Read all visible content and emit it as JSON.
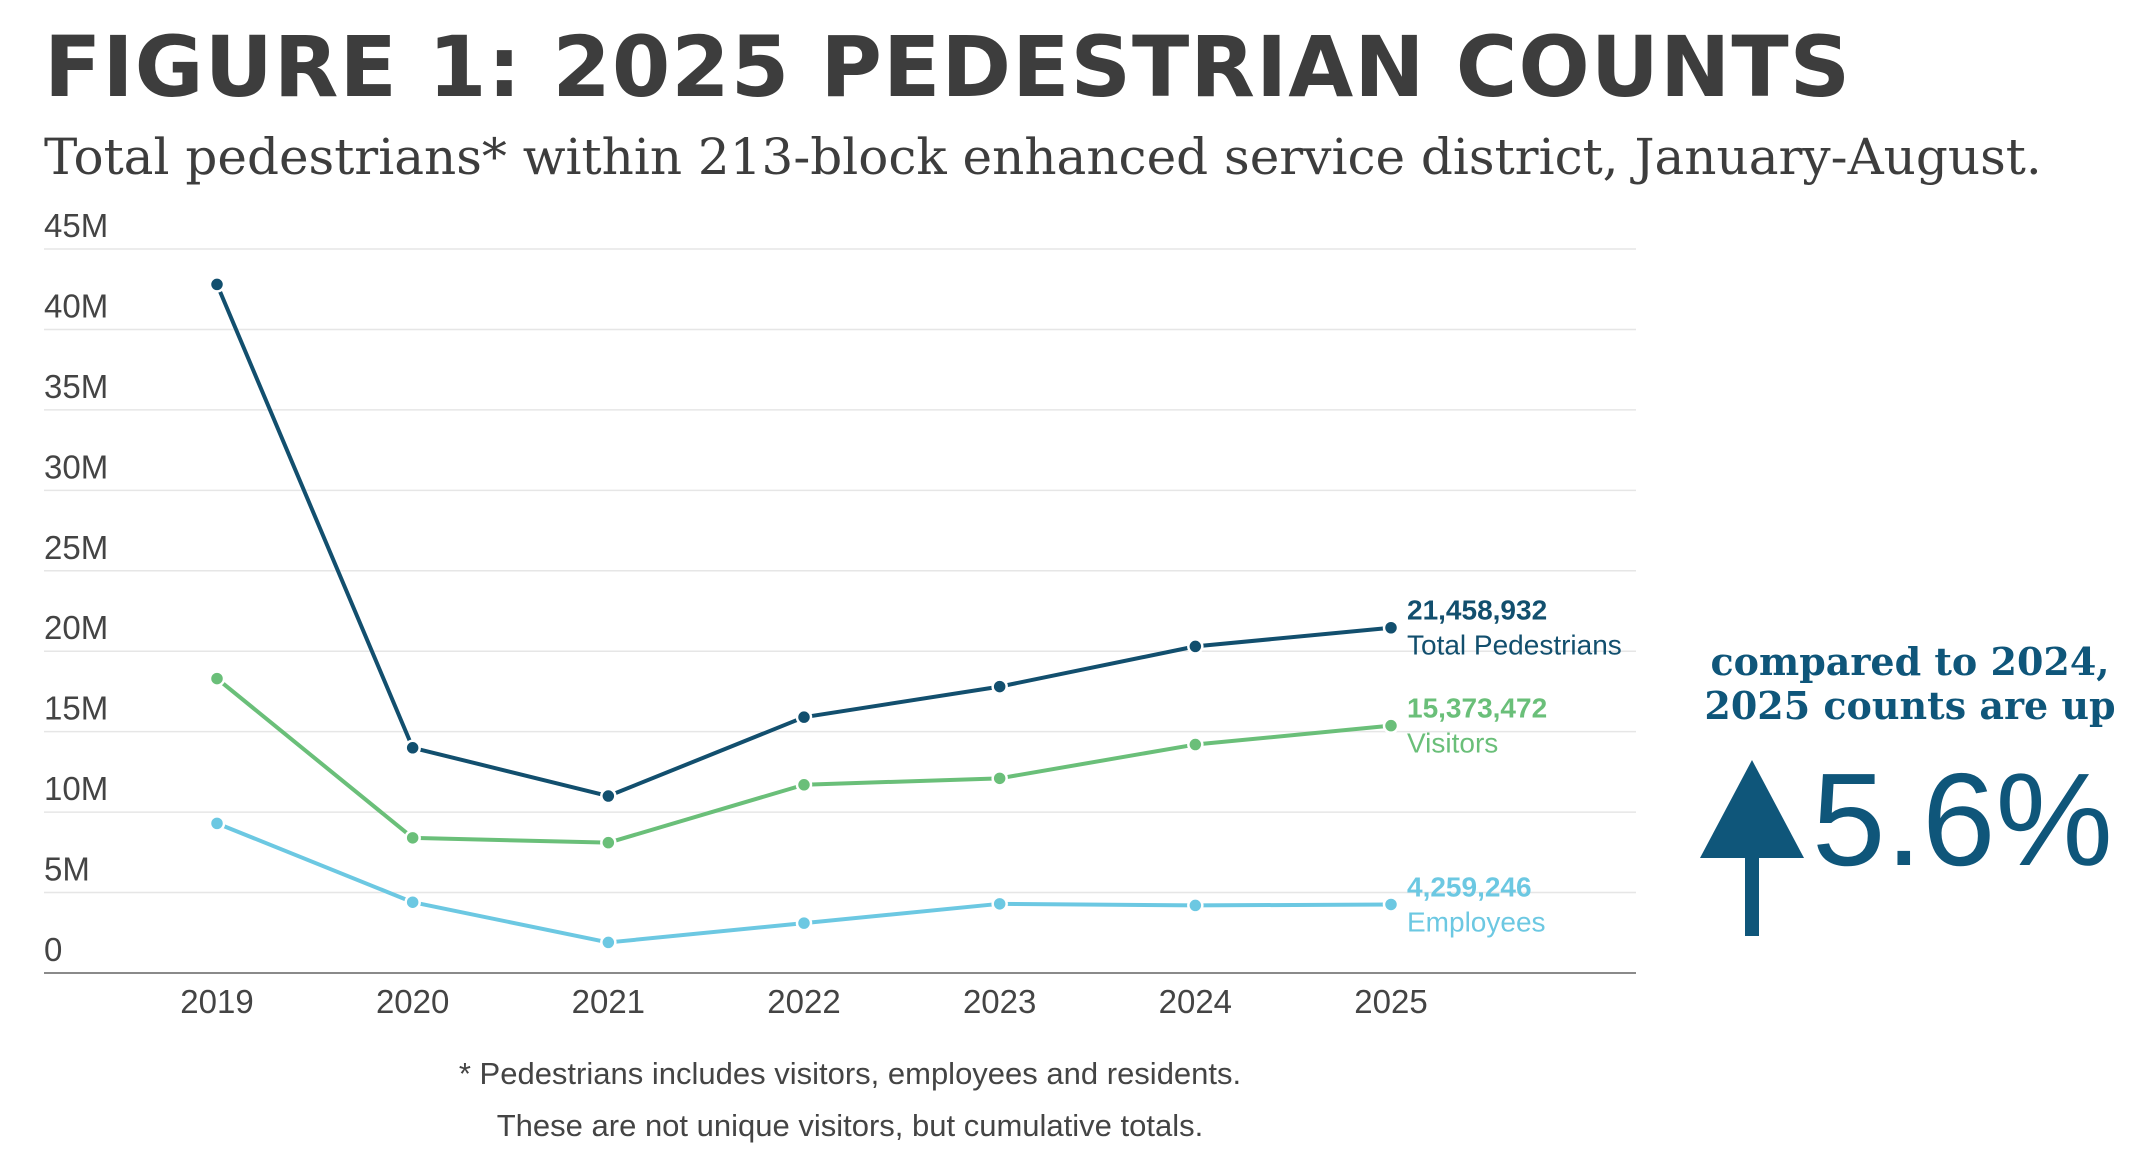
{
  "header": {
    "title": "FIGURE 1: 2025 PEDESTRIAN COUNTS",
    "subtitle": "Total pedestrians* within 213-block enhanced service district, January-August."
  },
  "callout": {
    "line1": "compared to 2024,",
    "line2": "2025 counts are up",
    "percent": "5.6%",
    "icon": "up-arrow-icon"
  },
  "footnote": {
    "line1": "* Pedestrians includes visitors, employees and residents.",
    "line2": "These are not unique visitors, but cumulative totals."
  },
  "colors": {
    "total": "#124f6e",
    "visitors": "#6abf79",
    "employees": "#6cc8e2",
    "axis_text": "#444444",
    "gridline": "#e6e6e6",
    "baseline": "#8a8a8a",
    "callout": "#0f567a"
  },
  "chart_data": {
    "type": "line",
    "x": [
      2019,
      2020,
      2021,
      2022,
      2023,
      2024,
      2025
    ],
    "x_tick_labels": [
      "2019",
      "2020",
      "2021",
      "2022",
      "2023",
      "2024",
      "2025"
    ],
    "y_tick_values": [
      0,
      5000000,
      10000000,
      15000000,
      20000000,
      25000000,
      30000000,
      35000000,
      40000000,
      45000000
    ],
    "y_tick_labels": [
      "0",
      "5M",
      "10M",
      "15M",
      "20M",
      "25M",
      "30M",
      "35M",
      "40M",
      "45M"
    ],
    "ylim": [
      0,
      45000000
    ],
    "grid": true,
    "series": [
      {
        "key": "total",
        "name": "Total Pedestrians",
        "end_label": "21,458,932",
        "values": [
          42800000,
          14000000,
          11000000,
          15900000,
          17800000,
          20300000,
          21458932
        ]
      },
      {
        "key": "visitors",
        "name": "Visitors",
        "end_label": "15,373,472",
        "values": [
          18300000,
          8400000,
          8100000,
          11700000,
          12100000,
          14200000,
          15373472
        ]
      },
      {
        "key": "employees",
        "name": "Employees",
        "end_label": "4,259,246",
        "values": [
          9300000,
          4400000,
          1900000,
          3100000,
          4300000,
          4200000,
          4259246
        ]
      }
    ]
  }
}
